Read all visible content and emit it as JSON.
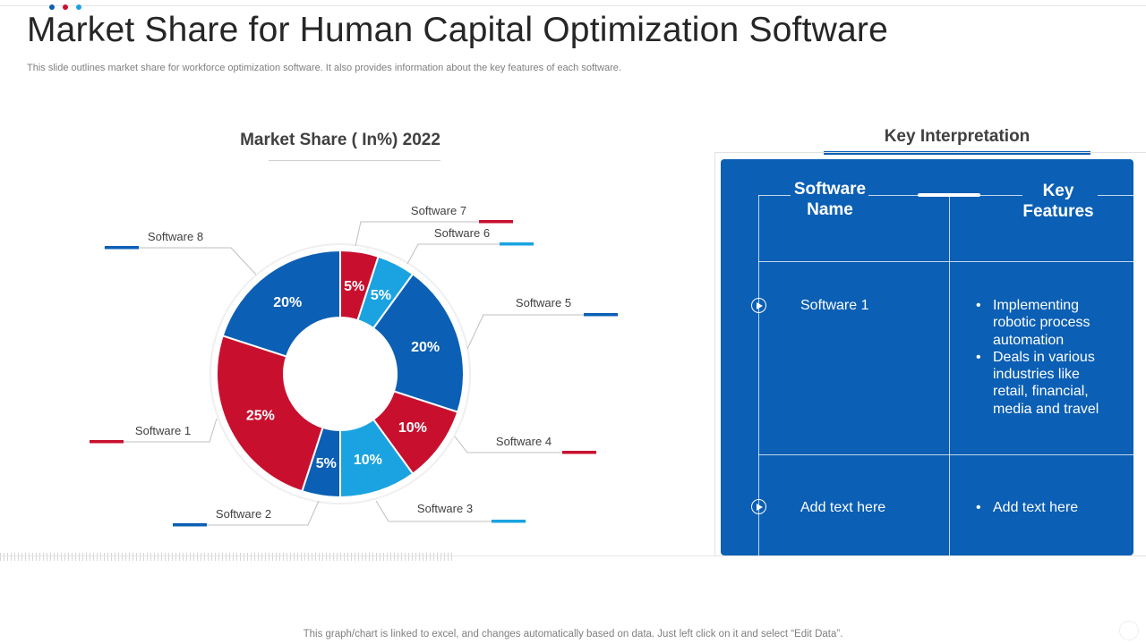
{
  "page": {
    "title": "Market Share for Human Capital Optimization Software",
    "subtitle": "This slide outlines market share for workforce optimization software. It also provides information about the key features of each software.",
    "footer": "This graph/chart is linked to excel,  and changes automatically based on data. Just left click on it and select “Edit Data”."
  },
  "colors": {
    "blue": "#0b5fb4",
    "red": "#c8102e",
    "light_blue": "#1aa3e0"
  },
  "chart_data": {
    "type": "pie",
    "variant": "donut",
    "title": "Market Share ( In%)  2022",
    "unit": "%",
    "categories": [
      "Software 1",
      "Software 2",
      "Software 3",
      "Software 4",
      "Software 5",
      "Software 6",
      "Software 7",
      "Software 8"
    ],
    "values": [
      25,
      5,
      10,
      10,
      20,
      5,
      5,
      20
    ],
    "value_labels": [
      "25%",
      "5%",
      "10%",
      "10%",
      "20%",
      "5%",
      "5%",
      "20%"
    ],
    "slice_colors": [
      "red",
      "blue",
      "light_blue",
      "red",
      "blue",
      "light_blue",
      "red",
      "blue"
    ],
    "legend": "callout-labels"
  },
  "key_interpretation": {
    "title": "Key Interpretation",
    "headers": {
      "name": "Software Name",
      "features": "Key Features"
    },
    "rows": [
      {
        "name": "Software 1",
        "features": [
          "Implementing robotic process automation",
          "Deals in various industries like retail, financial, media and travel"
        ]
      },
      {
        "name": "Add text here",
        "features": [
          "Add text here"
        ]
      }
    ]
  }
}
